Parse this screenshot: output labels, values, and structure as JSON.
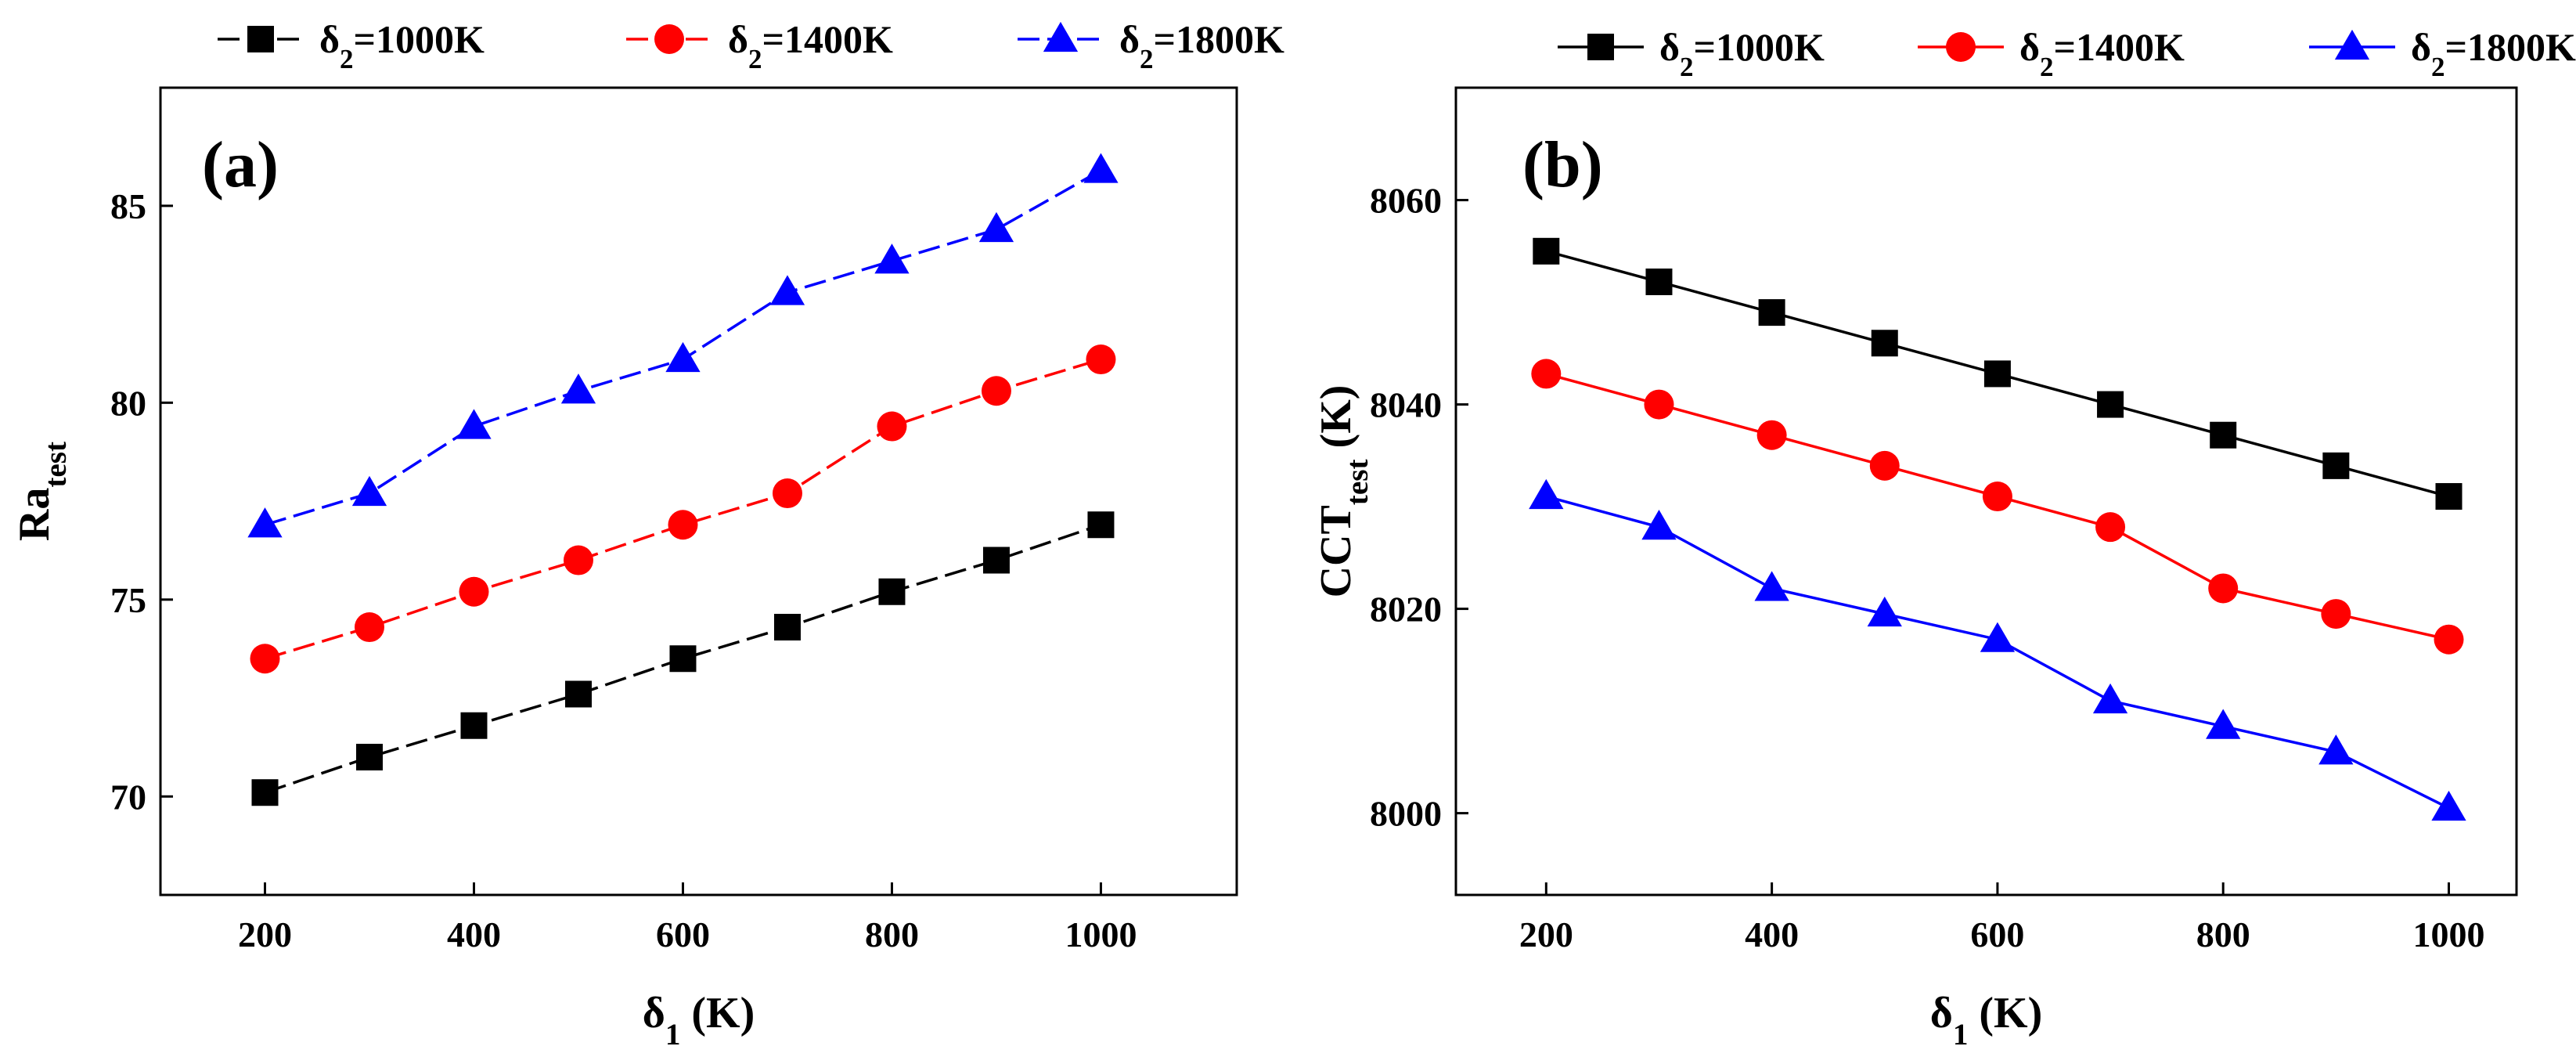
{
  "chart_data": [
    {
      "type": "line",
      "panel_label": "(a)",
      "title": "",
      "xlabel": {
        "main": "δ",
        "sub": "1",
        "unit": " (K)"
      },
      "ylabel": {
        "main": "Ra",
        "sub": "test",
        "unit": ""
      },
      "x": [
        200,
        300,
        400,
        500,
        600,
        700,
        800,
        900,
        1000
      ],
      "xlim": [
        100,
        1130
      ],
      "ylim": [
        67.5,
        88.0
      ],
      "xticks": [
        200,
        400,
        600,
        800,
        1000
      ],
      "yticks": [
        70,
        75,
        80,
        85
      ],
      "grid": false,
      "legend_position": "top",
      "series": [
        {
          "name": "δ2=1000K",
          "label_main": "δ",
          "label_sub": "2",
          "label_rest": "=1000K",
          "color": "#000000",
          "marker": "square",
          "dashed": true,
          "values": [
            70.1,
            71.0,
            71.8,
            72.6,
            73.5,
            74.3,
            75.2,
            76.0,
            76.9
          ]
        },
        {
          "name": "δ2=1400K",
          "label_main": "δ",
          "label_sub": "2",
          "label_rest": "=1400K",
          "color": "#ff0000",
          "marker": "circle",
          "dashed": true,
          "values": [
            73.5,
            74.3,
            75.2,
            76.0,
            76.9,
            77.7,
            79.4,
            80.3,
            81.1
          ]
        },
        {
          "name": "δ2=1800K",
          "label_main": "δ",
          "label_sub": "2",
          "label_rest": "=1800K",
          "color": "#0000ff",
          "marker": "triangle",
          "dashed": true,
          "values": [
            76.9,
            77.7,
            79.4,
            80.3,
            81.1,
            82.8,
            83.6,
            84.4,
            85.9
          ]
        }
      ]
    },
    {
      "type": "line",
      "panel_label": "(b)",
      "title": "",
      "xlabel": {
        "main": "δ",
        "sub": "1",
        "unit": " (K)"
      },
      "ylabel": {
        "main": "CCT",
        "sub": "test",
        "unit": " (K)"
      },
      "x": [
        200,
        300,
        400,
        500,
        600,
        700,
        800,
        900,
        1000
      ],
      "xlim": [
        120,
        1060
      ],
      "ylim": [
        7992,
        8071
      ],
      "xticks": [
        200,
        400,
        600,
        800,
        1000
      ],
      "yticks": [
        8000,
        8020,
        8040,
        8060
      ],
      "grid": false,
      "legend_position": "top",
      "series": [
        {
          "name": "δ2=1000K",
          "label_main": "δ",
          "label_sub": "2",
          "label_rest": "=1000K",
          "color": "#000000",
          "marker": "square",
          "dashed": false,
          "values": [
            8055,
            8052,
            8049,
            8046,
            8043,
            8040,
            8037,
            8034,
            8031
          ]
        },
        {
          "name": "δ2=1400K",
          "label_main": "δ",
          "label_sub": "2",
          "label_rest": "=1400K",
          "color": "#ff0000",
          "marker": "circle",
          "dashed": false,
          "values": [
            8043,
            8040,
            8037,
            8034,
            8031,
            8028,
            8022,
            8019.5,
            8017
          ]
        },
        {
          "name": "δ2=1800K",
          "label_main": "δ",
          "label_sub": "2",
          "label_rest": "=1800K",
          "color": "#0000ff",
          "marker": "triangle",
          "dashed": false,
          "values": [
            8031,
            8028,
            8022,
            8019.5,
            8017,
            8011,
            8008.5,
            8006,
            8000.5
          ]
        }
      ]
    }
  ]
}
